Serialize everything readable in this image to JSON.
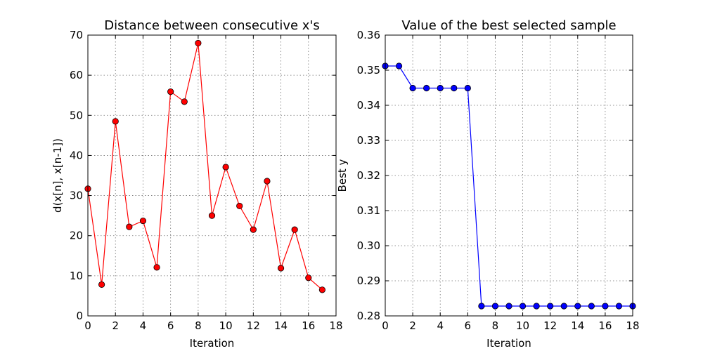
{
  "chart_data": [
    {
      "type": "line",
      "title": "Distance between consecutive x's",
      "xlabel": "Iteration",
      "ylabel": "d(x[n], x[n-1])",
      "xlim": [
        0,
        18
      ],
      "ylim": [
        0,
        70
      ],
      "xticks": [
        0,
        2,
        4,
        6,
        8,
        10,
        12,
        14,
        16,
        18
      ],
      "yticks": [
        0,
        10,
        20,
        30,
        40,
        50,
        60,
        70
      ],
      "ytick_labels": [
        "0",
        "10",
        "20",
        "30",
        "40",
        "50",
        "60",
        "70"
      ],
      "grid": true,
      "series": [
        {
          "color": "#ff0000",
          "marker": "circle",
          "x": [
            0,
            1,
            2,
            3,
            4,
            5,
            6,
            7,
            8,
            9,
            10,
            11,
            12,
            13,
            14,
            15,
            16,
            17
          ],
          "y": [
            31.7,
            7.8,
            48.5,
            22.2,
            23.7,
            12.1,
            55.9,
            53.4,
            68.0,
            25.0,
            37.1,
            27.4,
            21.5,
            33.6,
            11.9,
            21.5,
            9.5,
            6.5
          ]
        }
      ]
    },
    {
      "type": "line",
      "title": "Value of the best selected sample",
      "xlabel": "Iteration",
      "ylabel": "Best y",
      "xlim": [
        0,
        18
      ],
      "ylim": [
        0.28,
        0.36
      ],
      "xticks": [
        0,
        2,
        4,
        6,
        8,
        10,
        12,
        14,
        16,
        18
      ],
      "yticks": [
        0.28,
        0.29,
        0.3,
        0.31,
        0.32,
        0.33,
        0.34,
        0.35,
        0.36
      ],
      "ytick_labels": [
        "0.28",
        "0.29",
        "0.30",
        "0.31",
        "0.32",
        "0.33",
        "0.34",
        "0.35",
        "0.36"
      ],
      "grid": true,
      "series": [
        {
          "color": "#0000ff",
          "marker": "circle",
          "x": [
            0,
            1,
            2,
            3,
            4,
            5,
            6,
            7,
            8,
            9,
            10,
            11,
            12,
            13,
            14,
            15,
            16,
            17,
            18
          ],
          "y": [
            0.3512,
            0.3512,
            0.3449,
            0.3449,
            0.3449,
            0.3449,
            0.3449,
            0.2828,
            0.2828,
            0.2828,
            0.2828,
            0.2828,
            0.2828,
            0.2828,
            0.2828,
            0.2828,
            0.2828,
            0.2828,
            0.2828
          ]
        }
      ]
    }
  ]
}
